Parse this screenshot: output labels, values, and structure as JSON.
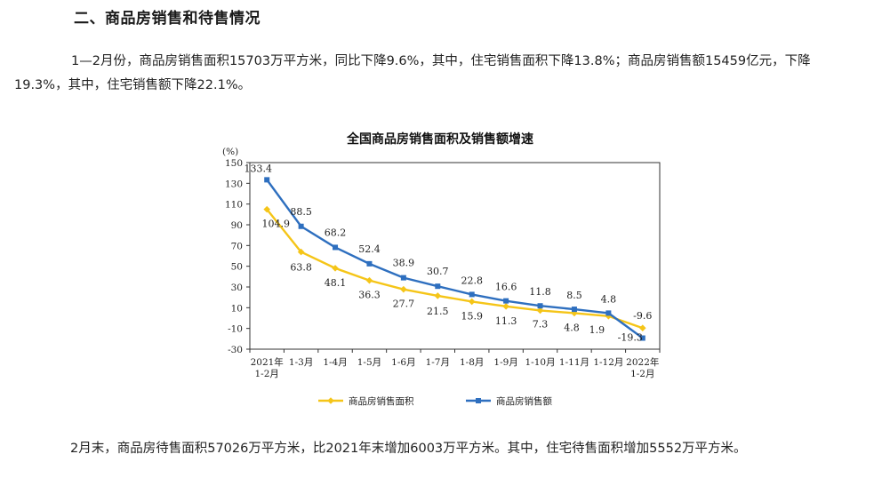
{
  "heading": "二、商品房销售和待售情况",
  "paragraph1": "1—2月份，商品房销售面积15703万平方米，同比下降9.6%，其中，住宅销售面积下降13.8%；商品房销售额15459亿元，下降19.3%，其中，住宅销售额下降22.1%。",
  "paragraph2": "2月末，商品房待售面积57026万平方米，比2021年末增加6003万平方米。其中，住宅待售面积增加5552万平方米。",
  "chart_data": {
    "type": "line",
    "title": "全国商品房销售面积及销售额增速",
    "ylabel": "(%)",
    "xlabel": "",
    "ylim": [
      -30,
      150
    ],
    "yticks": [
      -30,
      -10,
      10,
      30,
      50,
      70,
      90,
      110,
      130,
      150
    ],
    "categories": [
      [
        "2021年",
        "1-2月"
      ],
      [
        "1-3月"
      ],
      [
        "1-4月"
      ],
      [
        "1-5月"
      ],
      [
        "1-6月"
      ],
      [
        "1-7月"
      ],
      [
        "1-8月"
      ],
      [
        "1-9月"
      ],
      [
        "1-10月"
      ],
      [
        "1-11月"
      ],
      [
        "1-12月"
      ],
      [
        "2022年",
        "1-2月"
      ]
    ],
    "series": [
      {
        "name": "商品房销售面积",
        "color": "#F5C518",
        "marker": "diamond",
        "values": [
          104.9,
          63.8,
          48.1,
          36.3,
          27.7,
          21.5,
          15.9,
          11.3,
          7.3,
          4.8,
          1.9,
          -9.6
        ],
        "labels": [
          "104.9",
          "63.8",
          "48.1",
          "36.3",
          "27.7",
          "21.5",
          "15.9",
          "11.3",
          "7.3",
          "4.8",
          "1.9",
          "-9.6"
        ]
      },
      {
        "name": "商品房销售额",
        "color": "#2E6FBF",
        "marker": "square",
        "values": [
          133.4,
          88.5,
          68.2,
          52.4,
          38.9,
          30.7,
          22.8,
          16.6,
          11.8,
          8.5,
          4.8,
          -19.3
        ],
        "labels": [
          "133.4",
          "88.5",
          "68.2",
          "52.4",
          "38.9",
          "30.7",
          "22.8",
          "16.6",
          "11.8",
          "8.5",
          "4.8",
          "-19.3"
        ]
      }
    ],
    "legend": "bottom",
    "grid": false
  }
}
